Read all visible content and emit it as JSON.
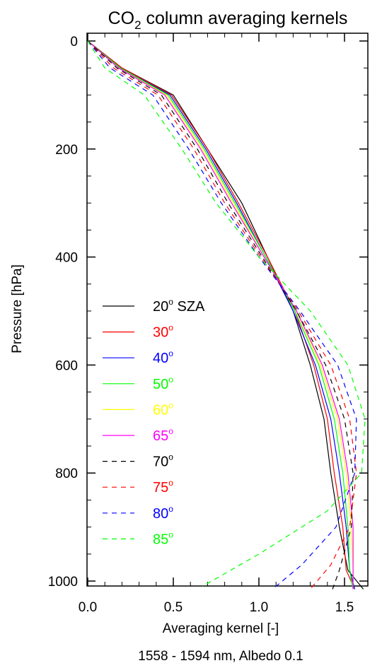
{
  "chart_data": {
    "type": "line",
    "title": "CO",
    "title_subscript": "2",
    "title_rest": " column averaging kernels",
    "xlabel": "Averaging kernel [-]",
    "subtitle": "1558 - 1594 nm, Albedo 0.1",
    "ylabel": "Pressure [hPa]",
    "xlim": [
      0.0,
      1.65
    ],
    "ylim": [
      1020,
      0
    ],
    "xticks": [
      "0.0",
      "0.5",
      "1.0",
      "1.5"
    ],
    "xtick_values": [
      0.0,
      0.5,
      1.0,
      1.5
    ],
    "yticks": [
      "0",
      "200",
      "400",
      "600",
      "800",
      "1000"
    ],
    "ytick_values": [
      0,
      200,
      400,
      600,
      800,
      1000
    ],
    "legend_position": "bottom-left",
    "series": [
      {
        "name": "20",
        "suffix": " SZA",
        "color": "#000000",
        "dashed": false,
        "x": [
          0.0,
          0.2,
          0.5,
          0.7,
          0.9,
          1.05,
          1.2,
          1.3,
          1.38,
          1.42,
          1.47,
          1.52,
          1.61
        ],
        "y": [
          0,
          50,
          100,
          200,
          300,
          400,
          500,
          600,
          700,
          800,
          900,
          980,
          1015
        ]
      },
      {
        "name": "30",
        "suffix": "",
        "color": "#ff0000",
        "dashed": false,
        "x": [
          0.0,
          0.2,
          0.49,
          0.7,
          0.88,
          1.05,
          1.21,
          1.32,
          1.4,
          1.44,
          1.49,
          1.51,
          1.56
        ],
        "y": [
          0,
          50,
          100,
          200,
          300,
          400,
          500,
          600,
          700,
          800,
          900,
          980,
          1015
        ]
      },
      {
        "name": "40",
        "suffix": "",
        "color": "#0000ff",
        "dashed": false,
        "x": [
          0.0,
          0.19,
          0.48,
          0.69,
          0.87,
          1.04,
          1.2,
          1.33,
          1.42,
          1.47,
          1.51,
          1.53,
          1.56
        ],
        "y": [
          0,
          50,
          100,
          200,
          300,
          400,
          500,
          600,
          700,
          800,
          900,
          980,
          1015
        ]
      },
      {
        "name": "50",
        "suffix": "",
        "color": "#00ff00",
        "dashed": false,
        "x": [
          0.0,
          0.19,
          0.47,
          0.68,
          0.86,
          1.04,
          1.21,
          1.35,
          1.44,
          1.49,
          1.52,
          1.53,
          1.55
        ],
        "y": [
          0,
          50,
          100,
          200,
          300,
          400,
          500,
          600,
          700,
          800,
          900,
          980,
          1015
        ]
      },
      {
        "name": "60",
        "suffix": "",
        "color": "#ffff00",
        "dashed": false,
        "x": [
          0.0,
          0.18,
          0.46,
          0.67,
          0.85,
          1.03,
          1.22,
          1.36,
          1.46,
          1.51,
          1.54,
          1.55,
          1.55
        ],
        "y": [
          0,
          50,
          100,
          200,
          300,
          400,
          500,
          600,
          700,
          800,
          900,
          980,
          1015
        ]
      },
      {
        "name": "65",
        "suffix": "",
        "color": "#ff00ff",
        "dashed": false,
        "x": [
          0.0,
          0.18,
          0.45,
          0.66,
          0.84,
          1.03,
          1.22,
          1.37,
          1.47,
          1.52,
          1.55,
          1.55,
          1.55
        ],
        "y": [
          0,
          50,
          100,
          200,
          300,
          400,
          500,
          600,
          700,
          800,
          900,
          980,
          1015
        ]
      },
      {
        "name": "70",
        "suffix": "",
        "color": "#000000",
        "dashed": true,
        "x": [
          0.0,
          0.17,
          0.43,
          0.64,
          0.82,
          1.02,
          1.22,
          1.39,
          1.5,
          1.55,
          1.54,
          1.47,
          1.43
        ],
        "y": [
          0,
          50,
          100,
          200,
          300,
          400,
          500,
          600,
          700,
          800,
          900,
          980,
          1015
        ]
      },
      {
        "name": "75",
        "suffix": "",
        "color": "#ff0000",
        "dashed": true,
        "x": [
          0.0,
          0.15,
          0.41,
          0.62,
          0.8,
          1.01,
          1.23,
          1.42,
          1.53,
          1.57,
          1.53,
          1.42,
          1.3
        ],
        "y": [
          0,
          50,
          100,
          200,
          300,
          400,
          500,
          600,
          700,
          800,
          900,
          970,
          1015
        ]
      },
      {
        "name": "80",
        "suffix": "",
        "color": "#0000ff",
        "dashed": true,
        "x": [
          0.0,
          0.13,
          0.38,
          0.59,
          0.78,
          1.0,
          1.24,
          1.46,
          1.57,
          1.56,
          1.45,
          1.25,
          1.08
        ],
        "y": [
          0,
          50,
          100,
          200,
          300,
          400,
          500,
          600,
          700,
          800,
          900,
          970,
          1015
        ]
      },
      {
        "name": "85",
        "suffix": "",
        "color": "#00ff00",
        "dashed": true,
        "x": [
          0.0,
          0.1,
          0.33,
          0.55,
          0.75,
          1.0,
          1.3,
          1.52,
          1.62,
          1.6,
          1.4,
          1.0,
          0.67
        ],
        "y": [
          0,
          50,
          100,
          200,
          300,
          400,
          500,
          600,
          700,
          800,
          870,
          950,
          1010
        ]
      }
    ]
  }
}
